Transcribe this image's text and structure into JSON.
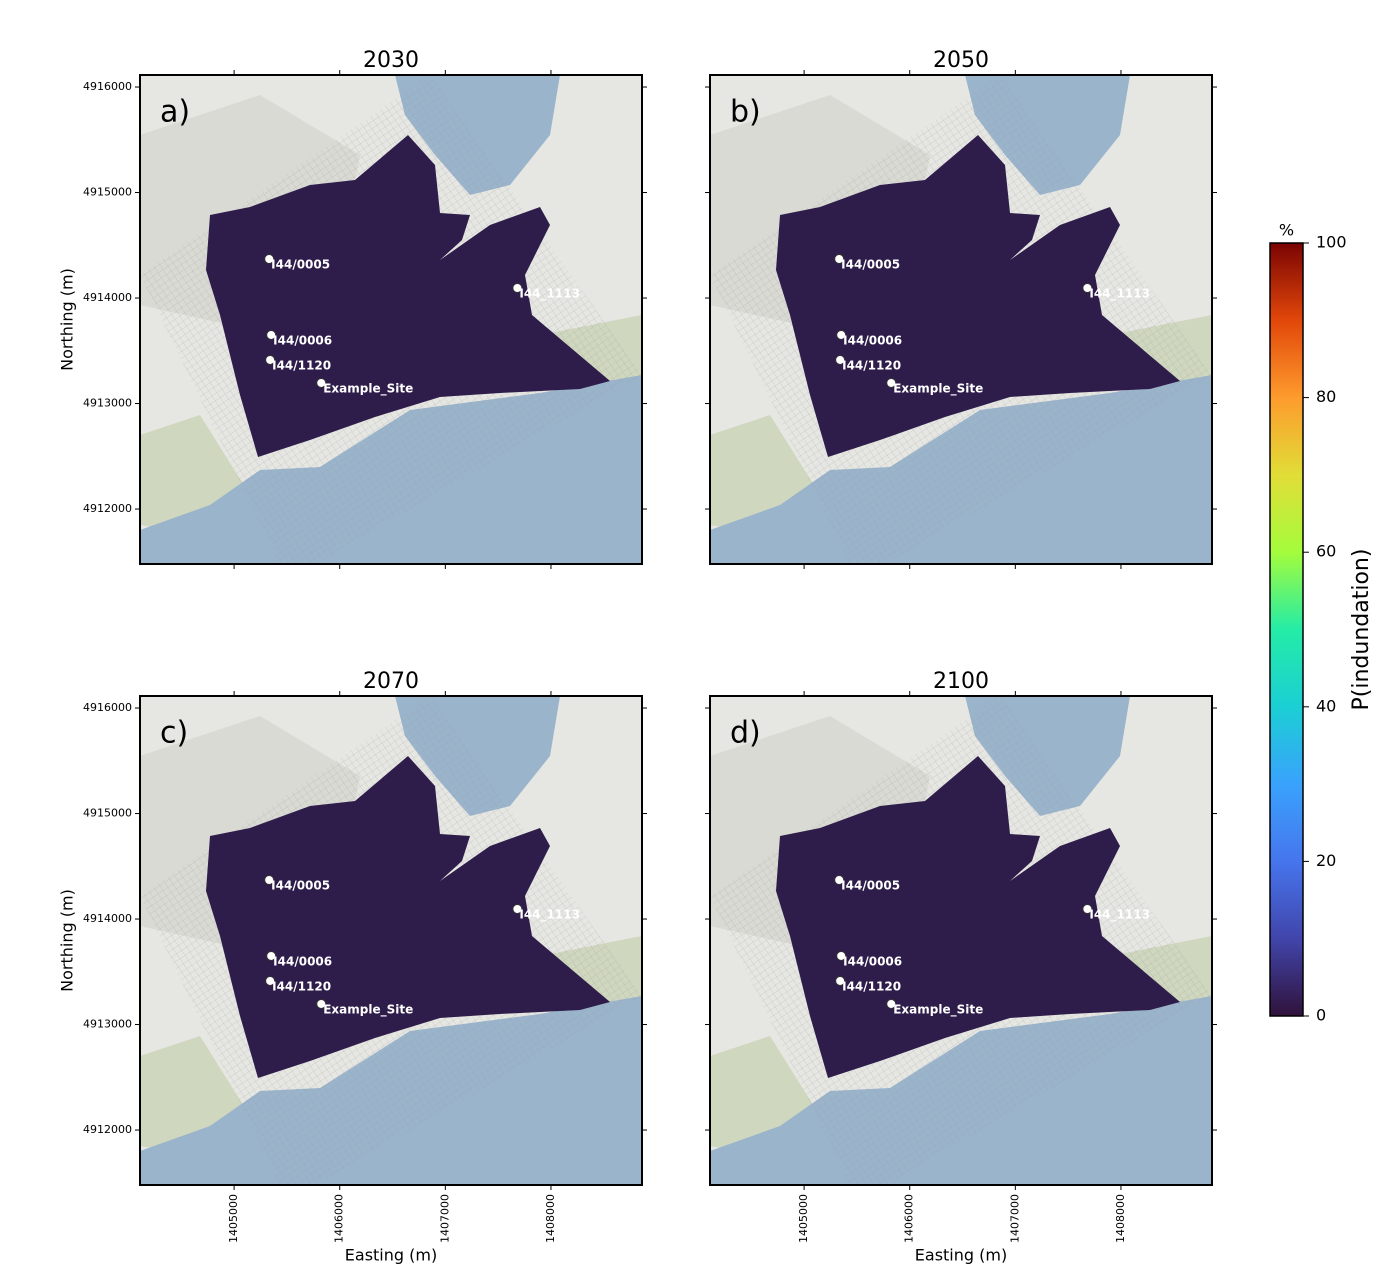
{
  "figure": {
    "panels": [
      {
        "title": "2030",
        "label": "a)"
      },
      {
        "title": "2050",
        "label": "b)"
      },
      {
        "title": "2070",
        "label": "c)"
      },
      {
        "title": "2100",
        "label": "d)"
      }
    ],
    "xlim": [
      1404109,
      1408862
    ],
    "ylim": [
      4911479,
      4916114
    ],
    "xticks": [
      1405000,
      1406000,
      1407000,
      1408000
    ],
    "yticks": [
      4912000,
      4913000,
      4914000,
      4915000,
      4916000
    ],
    "xlabel": "Easting (m)",
    "ylabel": "Northing (m)",
    "sites": [
      {
        "name": "I44/0005",
        "x": 1405332,
        "y": 4914370
      },
      {
        "name": "I44_1113",
        "x": 1407682,
        "y": 4914095
      },
      {
        "name": "I44/0006",
        "x": 1405351,
        "y": 4913650
      },
      {
        "name": "I44/1120",
        "x": 1405341,
        "y": 4913413
      },
      {
        "name": "Example_Site",
        "x": 1405825,
        "y": 4913195
      }
    ],
    "colorbar": {
      "unit": "%",
      "label": "P(indundation)",
      "lim": [
        0,
        100
      ],
      "ticks": [
        0,
        20,
        40,
        60,
        80,
        100
      ]
    }
  }
}
